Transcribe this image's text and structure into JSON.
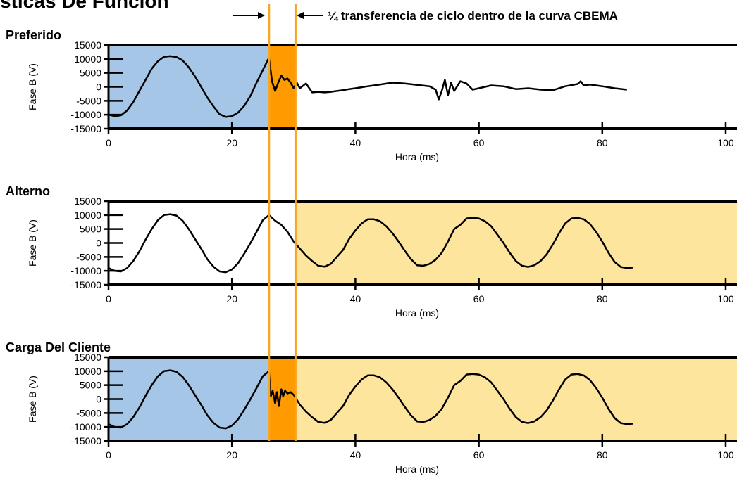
{
  "title": "sticas De Función",
  "annotation": {
    "text": "¼ transferencia de ciclo dentro de la curva CBEMA",
    "marker_x": [
      26,
      30.3
    ]
  },
  "colors": {
    "blue": "#a5c6e6",
    "orange": "#ff9a00",
    "yellow": "#fde59d",
    "marker": "#f5a623",
    "trace": "#000000"
  },
  "chart_data": [
    {
      "type": "line",
      "title": "Preferido",
      "xlabel": "Hora (ms)",
      "ylabel": "Fase B (V)",
      "xlim": [
        0,
        100
      ],
      "ylim": [
        -15000,
        15000
      ],
      "xticks": [
        0,
        20,
        40,
        60,
        80,
        100
      ],
      "yticks": [
        15000,
        10000,
        5000,
        0,
        -5000,
        -10000,
        -15000
      ],
      "shaded_regions": [
        {
          "from": 0,
          "to": 26,
          "color": "blue"
        },
        {
          "from": 26,
          "to": 30.3,
          "color": "orange"
        }
      ],
      "series": [
        {
          "x": [
            0,
            1,
            2,
            3,
            4,
            5,
            6,
            7,
            8,
            9,
            10,
            11,
            12,
            13,
            14,
            15,
            16,
            17,
            18,
            19,
            20,
            21,
            22,
            23,
            24,
            25,
            26,
            26.5,
            27,
            27.5,
            28,
            28.5,
            29,
            29.5,
            30,
            30.5,
            31,
            32,
            33,
            34,
            35,
            36,
            37,
            38,
            39,
            40,
            42,
            44,
            46,
            48,
            50,
            52,
            53,
            53.5,
            54,
            54.5,
            55,
            55.5,
            56,
            57,
            58,
            59,
            60,
            62,
            64,
            66,
            68,
            70,
            72,
            74,
            76,
            76.5,
            77,
            78,
            80,
            82,
            84
          ],
          "y": [
            -10000,
            -10500,
            -10200,
            -8500,
            -5500,
            -1500,
            2500,
            6500,
            9200,
            10800,
            11000,
            10700,
            9500,
            7000,
            3800,
            0,
            -3800,
            -7000,
            -9800,
            -10800,
            -10500,
            -9200,
            -6800,
            -3200,
            1500,
            6000,
            10500,
            2000,
            -1500,
            1500,
            4000,
            2500,
            3000,
            1500,
            -500,
            1500,
            -500,
            1200,
            -2000,
            -1800,
            -2000,
            -1800,
            -1500,
            -1200,
            -800,
            -500,
            200,
            800,
            1500,
            1200,
            700,
            200,
            -1000,
            -4500,
            -1500,
            2500,
            -3000,
            1500,
            -1500,
            2000,
            1200,
            -1000,
            -500,
            500,
            200,
            -800,
            -500,
            -1000,
            -1200,
            200,
            1000,
            2000,
            500,
            800,
            200,
            -500,
            -1000
          ]
        }
      ]
    },
    {
      "type": "line",
      "title": "Alterno",
      "xlabel": "Hora (ms)",
      "ylabel": "Fase B (V)",
      "xlim": [
        0,
        100
      ],
      "ylim": [
        -15000,
        15000
      ],
      "xticks": [
        0,
        20,
        40,
        60,
        80,
        100
      ],
      "yticks": [
        15000,
        10000,
        5000,
        0,
        -5000,
        -10000,
        -15000
      ],
      "shaded_regions": [
        {
          "from": 30.3,
          "to": 100,
          "color": "yellow"
        }
      ],
      "series": [
        {
          "x": [
            0,
            1,
            2,
            3,
            4,
            5,
            6,
            7,
            8,
            9,
            10,
            11,
            12,
            13,
            14,
            15,
            16,
            17,
            18,
            19,
            20,
            21,
            22,
            23,
            24,
            25,
            26,
            27,
            28,
            29,
            30,
            31,
            32,
            33,
            34,
            35,
            36,
            37,
            38,
            39,
            40,
            41,
            42,
            43,
            44,
            45,
            46,
            47,
            48,
            49,
            50,
            51,
            52,
            53,
            54,
            55,
            56,
            57,
            58,
            59,
            60,
            61,
            62,
            63,
            64,
            65,
            66,
            67,
            68,
            69,
            70,
            71,
            72,
            73,
            74,
            75,
            76,
            77,
            78,
            79,
            80,
            81,
            82,
            83,
            84,
            85
          ],
          "y": [
            -9000,
            -10000,
            -10200,
            -9000,
            -6500,
            -3000,
            1200,
            5000,
            8200,
            10000,
            10300,
            9800,
            8000,
            5000,
            1500,
            -2000,
            -5800,
            -8500,
            -10200,
            -10500,
            -9500,
            -7200,
            -3800,
            0,
            4000,
            8200,
            10000,
            8000,
            6500,
            4000,
            500,
            -2000,
            -4500,
            -6500,
            -8200,
            -8500,
            -7500,
            -5000,
            -2500,
            1500,
            4500,
            7000,
            8500,
            8500,
            7800,
            6000,
            3500,
            500,
            -2800,
            -5800,
            -8000,
            -8200,
            -7500,
            -6000,
            -3500,
            500,
            5000,
            6500,
            8800,
            9000,
            8800,
            7800,
            6000,
            3000,
            0,
            -3500,
            -6500,
            -8200,
            -8600,
            -8000,
            -6500,
            -4000,
            -500,
            3500,
            7000,
            8800,
            9000,
            8500,
            6800,
            4000,
            500,
            -3500,
            -6800,
            -8600,
            -9000,
            -8800
          ]
        }
      ]
    },
    {
      "type": "line",
      "title": "Carga Del Cliente",
      "xlabel": "Hora (ms)",
      "ylabel": "Fase B (V)",
      "xlim": [
        0,
        100
      ],
      "ylim": [
        -15000,
        15000
      ],
      "xticks": [
        0,
        20,
        40,
        60,
        80,
        100
      ],
      "yticks": [
        15000,
        10000,
        5000,
        0,
        -5000,
        -10000,
        -15000
      ],
      "shaded_regions": [
        {
          "from": 0,
          "to": 26,
          "color": "blue"
        },
        {
          "from": 26,
          "to": 30.3,
          "color": "orange"
        },
        {
          "from": 30.3,
          "to": 100,
          "color": "yellow"
        }
      ],
      "series": [
        {
          "x": [
            0,
            1,
            2,
            3,
            4,
            5,
            6,
            7,
            8,
            9,
            10,
            11,
            12,
            13,
            14,
            15,
            16,
            17,
            18,
            19,
            20,
            21,
            22,
            23,
            24,
            25,
            26,
            26.3,
            26.6,
            27,
            27.3,
            27.6,
            28,
            28.3,
            28.6,
            29,
            29.5,
            30,
            31,
            32,
            33,
            34,
            35,
            36,
            37,
            38,
            39,
            40,
            41,
            42,
            43,
            44,
            45,
            46,
            47,
            48,
            49,
            50,
            51,
            52,
            53,
            54,
            55,
            56,
            57,
            58,
            59,
            60,
            61,
            62,
            63,
            64,
            65,
            66,
            67,
            68,
            69,
            70,
            71,
            72,
            73,
            74,
            75,
            76,
            77,
            78,
            79,
            80,
            81,
            82,
            83,
            84,
            85
          ],
          "y": [
            -9000,
            -10000,
            -10200,
            -9000,
            -6500,
            -3000,
            1200,
            5000,
            8200,
            10000,
            10300,
            9800,
            8000,
            5000,
            1500,
            -2000,
            -5800,
            -8500,
            -10200,
            -10500,
            -9500,
            -7200,
            -3800,
            0,
            4000,
            8200,
            10000,
            1000,
            3000,
            -1500,
            2500,
            -2500,
            3500,
            1000,
            3000,
            2000,
            2500,
            1500,
            -2000,
            -4500,
            -6500,
            -8200,
            -8500,
            -7500,
            -5000,
            -2500,
            1500,
            4500,
            7000,
            8500,
            8500,
            7800,
            6000,
            3500,
            500,
            -2800,
            -5800,
            -8000,
            -8200,
            -7500,
            -6000,
            -3500,
            500,
            5000,
            6500,
            8800,
            9000,
            8800,
            7800,
            6000,
            3000,
            0,
            -3500,
            -6500,
            -8200,
            -8600,
            -8000,
            -6500,
            -4000,
            -500,
            3500,
            7000,
            8800,
            9000,
            8500,
            6800,
            4000,
            500,
            -3500,
            -6800,
            -8600,
            -9000,
            -8800
          ]
        }
      ]
    }
  ]
}
